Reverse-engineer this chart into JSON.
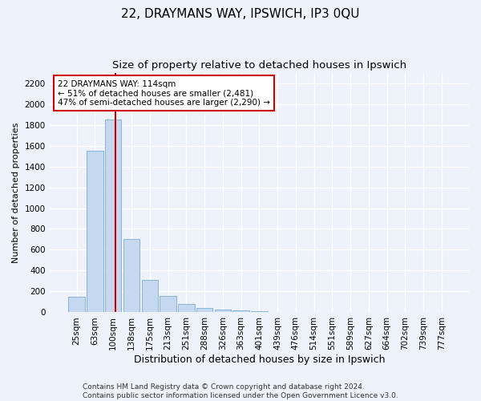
{
  "title1": "22, DRAYMANS WAY, IPSWICH, IP3 0QU",
  "title2": "Size of property relative to detached houses in Ipswich",
  "xlabel": "Distribution of detached houses by size in Ipswich",
  "ylabel": "Number of detached properties",
  "footnote1": "Contains HM Land Registry data © Crown copyright and database right 2024.",
  "footnote2": "Contains public sector information licensed under the Open Government Licence v3.0.",
  "annotation_line1": "22 DRAYMANS WAY: 114sqm",
  "annotation_line2": "← 51% of detached houses are smaller (2,481)",
  "annotation_line3": "47% of semi-detached houses are larger (2,290) →",
  "bin_labels": [
    "25sqm",
    "63sqm",
    "100sqm",
    "138sqm",
    "175sqm",
    "213sqm",
    "251sqm",
    "288sqm",
    "326sqm",
    "363sqm",
    "401sqm",
    "439sqm",
    "476sqm",
    "514sqm",
    "551sqm",
    "589sqm",
    "627sqm",
    "664sqm",
    "702sqm",
    "739sqm",
    "777sqm"
  ],
  "bar_values": [
    150,
    1550,
    1850,
    700,
    315,
    155,
    80,
    40,
    25,
    20,
    10,
    5,
    3,
    2,
    1,
    1,
    0,
    0,
    0,
    0,
    0
  ],
  "bar_color": "#c5d8f0",
  "bar_edge_color": "#7aadd4",
  "red_line_color": "#cc0000",
  "annotation_box_color": "#cc0000",
  "background_color": "#eef2fb",
  "ylim": [
    0,
    2300
  ],
  "yticks": [
    0,
    200,
    400,
    600,
    800,
    1000,
    1200,
    1400,
    1600,
    1800,
    2000,
    2200
  ],
  "grid_color": "#ffffff",
  "title1_fontsize": 11,
  "title2_fontsize": 9.5,
  "xlabel_fontsize": 9,
  "ylabel_fontsize": 8,
  "tick_fontsize": 7.5,
  "annotation_fontsize": 7.5,
  "footnote_fontsize": 6.5
}
